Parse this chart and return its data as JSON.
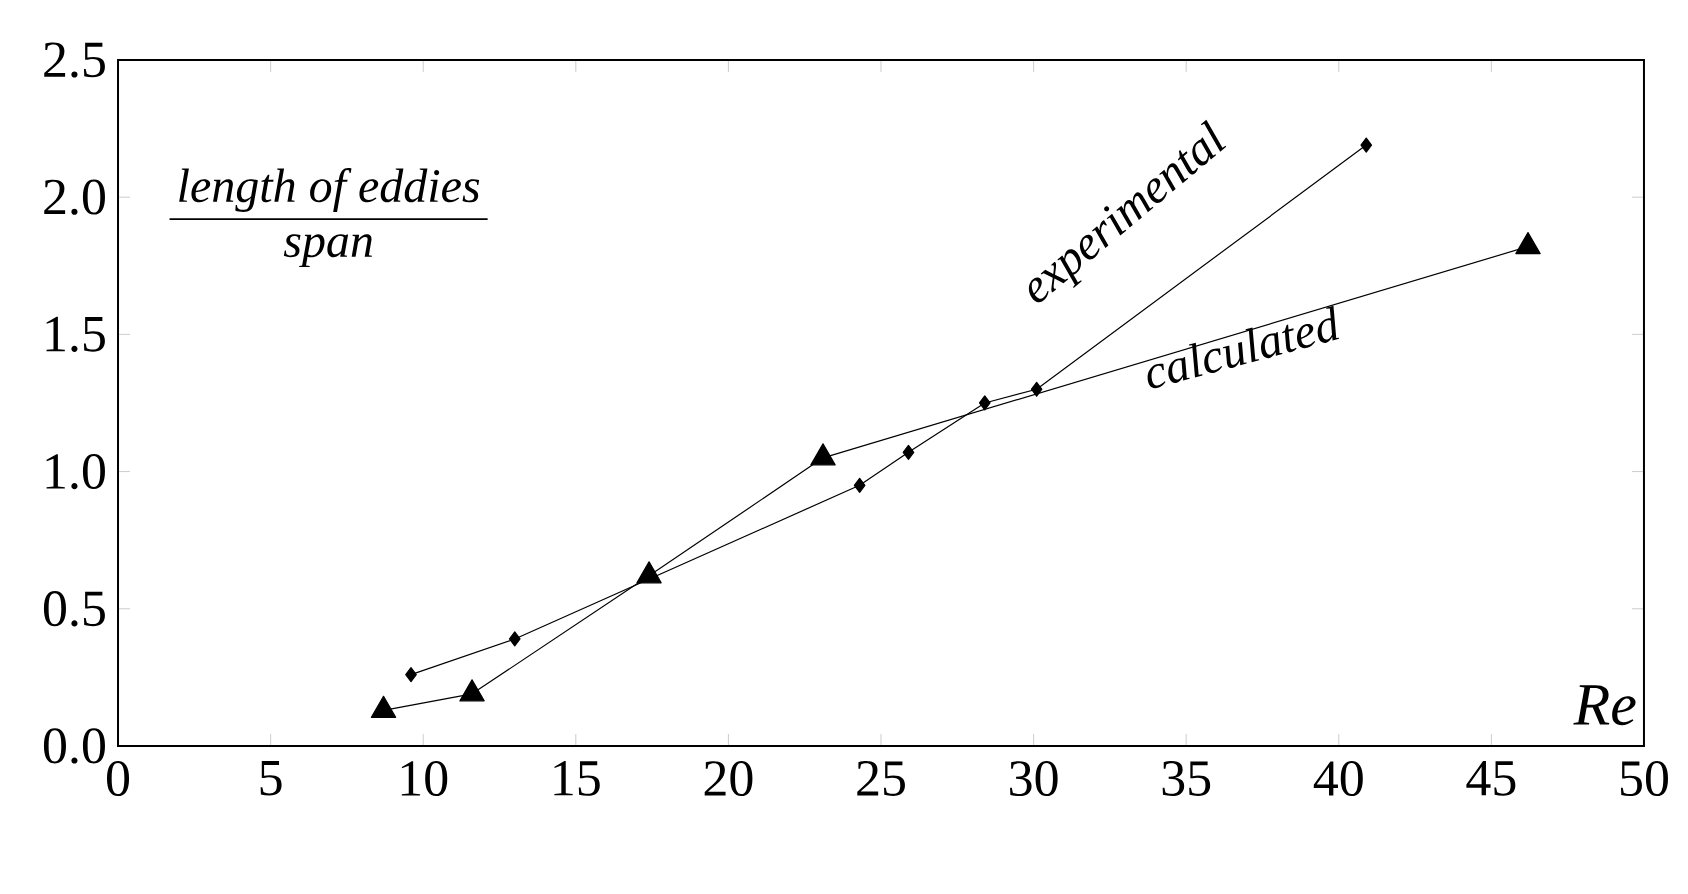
{
  "chart_data": {
    "type": "line",
    "xlabel": "Re",
    "annotations": [
      "length of eddies",
      "span"
    ],
    "xlim": [
      0,
      50
    ],
    "xticks": [
      0,
      5,
      10,
      15,
      20,
      25,
      30,
      35,
      40,
      45,
      50
    ],
    "ylim": [
      0,
      2.5
    ],
    "yticks": [
      {
        "value": 0,
        "label": "0.0"
      },
      0.5,
      {
        "value": 1,
        "label": "1.0"
      },
      1.5,
      {
        "value": 2,
        "label": "2.0"
      },
      2.5
    ],
    "grid": false,
    "legend": false,
    "series": [
      {
        "name": "experimental",
        "color": "#000000",
        "marker": "diamond",
        "x": [
          9.6,
          13.0,
          24.3,
          25.9,
          28.4,
          30.1,
          40.9
        ],
        "values": [
          0.26,
          0.39,
          0.95,
          1.07,
          1.25,
          1.3,
          2.19
        ]
      },
      {
        "name": "calculated",
        "color": "#000000",
        "marker": "triangle",
        "x": [
          8.7,
          11.6,
          17.4,
          23.1,
          46.2
        ],
        "values": [
          0.13,
          0.19,
          0.62,
          1.05,
          1.82
        ]
      }
    ]
  }
}
